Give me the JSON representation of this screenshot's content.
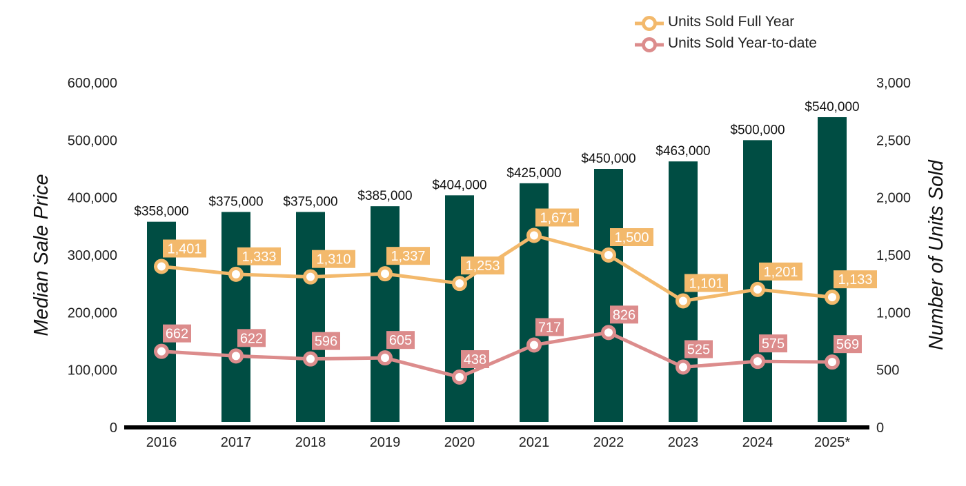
{
  "chart_data": {
    "type": "bar",
    "categories": [
      "2016",
      "2017",
      "2018",
      "2019",
      "2020",
      "2021",
      "2022",
      "2023",
      "2024",
      "2025*"
    ],
    "bars": {
      "axis": "left",
      "values": [
        358000,
        375000,
        375000,
        385000,
        404000,
        425000,
        450000,
        463000,
        500000,
        540000
      ],
      "data_labels": [
        "$358,000",
        "$375,000",
        "$375,000",
        "$385,000",
        "$404,000",
        "$425,000",
        "$450,000",
        "$463,000",
        "$500,000",
        "$540,000"
      ],
      "color": "#004d43"
    },
    "lines": [
      {
        "name": "Units Sold Full Year",
        "axis": "right",
        "values": [
          1401,
          1333,
          1310,
          1337,
          1253,
          1671,
          1500,
          1101,
          1201,
          1133
        ],
        "data_labels": [
          "1,401",
          "1,333",
          "1,310",
          "1,337",
          "1,253",
          "1,671",
          "1,500",
          "1,101",
          "1,201",
          "1,133"
        ],
        "color": "#f3b96c"
      },
      {
        "name": "Units Sold Year-to-date",
        "axis": "right",
        "values": [
          662,
          622,
          596,
          605,
          438,
          717,
          826,
          525,
          575,
          569
        ],
        "data_labels": [
          "662",
          "622",
          "596",
          "605",
          "438",
          "717",
          "826",
          "525",
          "575",
          "569"
        ],
        "color": "#dc8c8c"
      }
    ],
    "ylabel": "Median Sale Price",
    "y2label": "Number of Units Sold",
    "ylim": [
      0,
      600000
    ],
    "y2lim": [
      0,
      3000
    ],
    "yticks": [
      "0",
      "100,000",
      "200,000",
      "300,000",
      "400,000",
      "500,000",
      "600,000"
    ],
    "y2ticks": [
      "0",
      "500",
      "1,000",
      "1,500",
      "2,000",
      "2,500",
      "3,000"
    ],
    "grid": false,
    "legend_position": "top-right"
  }
}
